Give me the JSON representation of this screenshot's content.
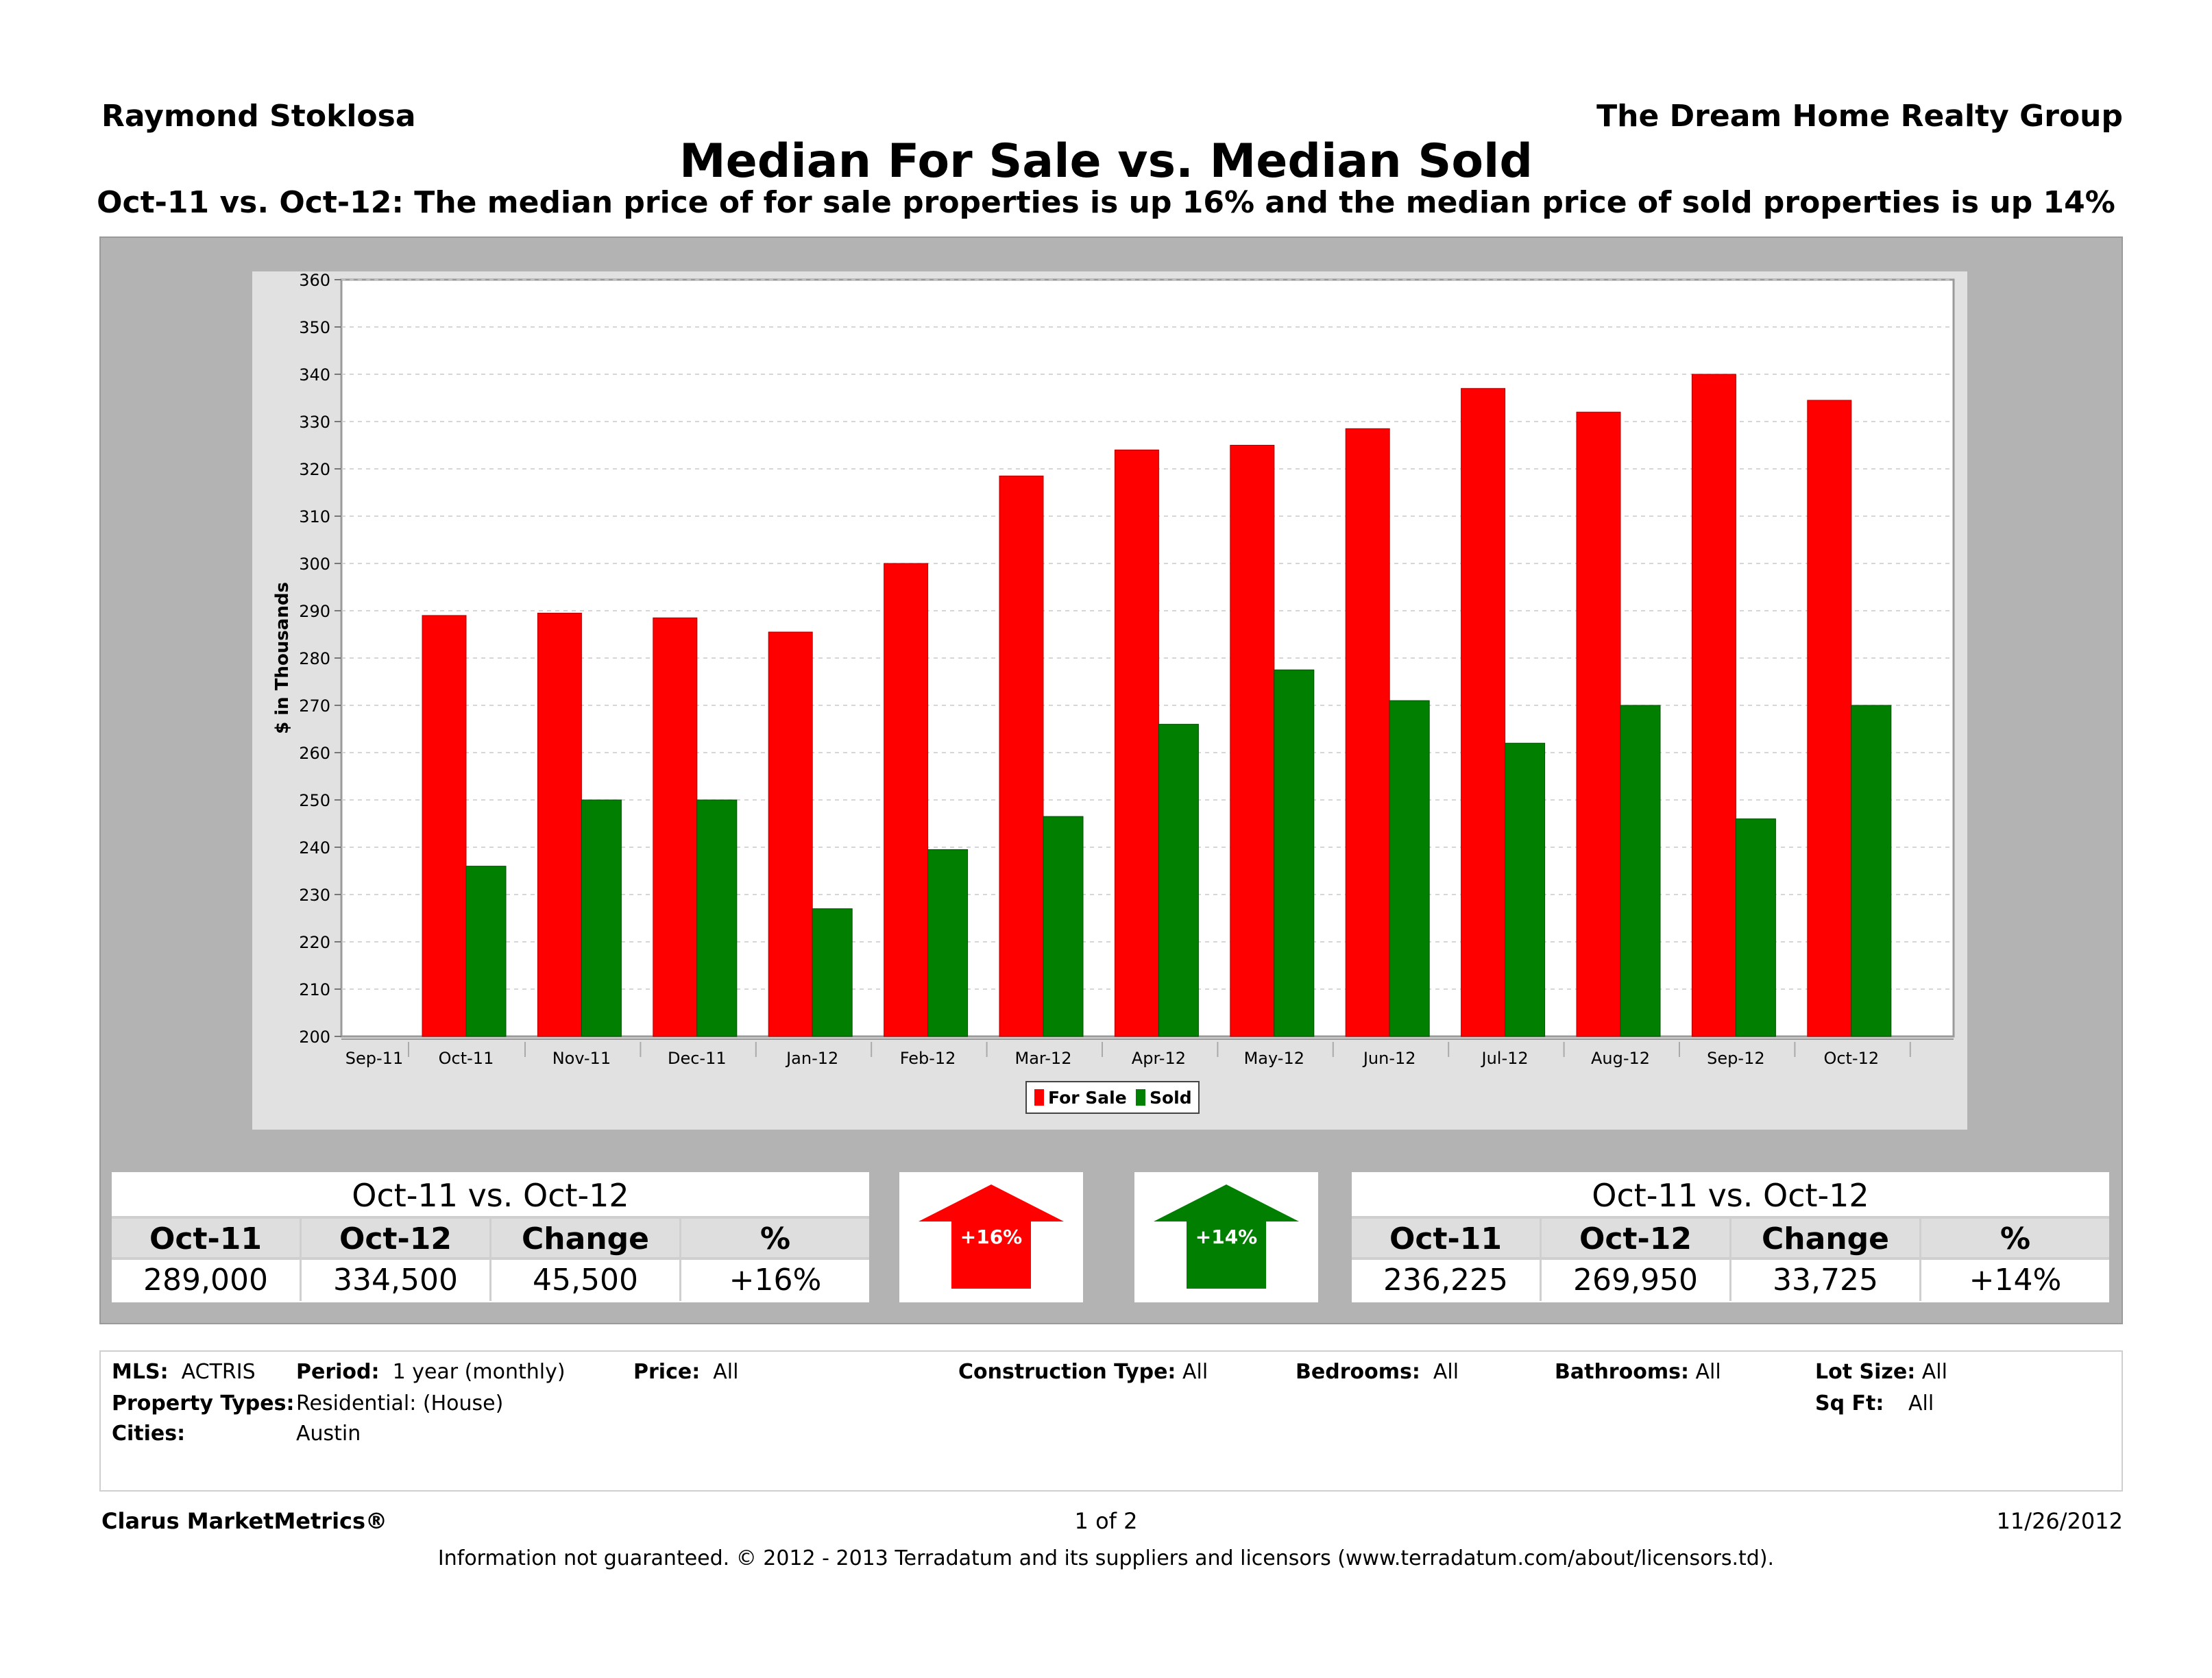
{
  "header": {
    "agent": "Raymond Stoklosa",
    "company": "The Dream Home Realty Group",
    "title": "Median For Sale vs. Median Sold",
    "subtitle": "Oct-11 vs. Oct-12:  The median price of for sale properties is up 16% and the median price of sold properties is up 14%"
  },
  "chart_data": {
    "type": "bar",
    "title": "",
    "xlabel": "",
    "ylabel": "$ in Thousands",
    "ylim": [
      200,
      360
    ],
    "yticks": [
      200,
      210,
      220,
      230,
      240,
      250,
      260,
      270,
      280,
      290,
      300,
      310,
      320,
      330,
      340,
      350,
      360
    ],
    "categories": [
      "Sep-11",
      "Oct-11",
      "Nov-11",
      "Dec-11",
      "Jan-12",
      "Feb-12",
      "Mar-12",
      "Apr-12",
      "May-12",
      "Jun-12",
      "Jul-12",
      "Aug-12",
      "Sep-12",
      "Oct-12"
    ],
    "series": [
      {
        "name": "For Sale",
        "color": "#ff0000",
        "values": [
          null,
          289,
          289.5,
          288.5,
          285.5,
          300,
          318.5,
          324,
          325,
          328.5,
          337,
          332,
          340,
          334.5
        ]
      },
      {
        "name": "Sold",
        "color": "#007f00",
        "values": [
          null,
          236,
          250,
          250,
          227,
          239.5,
          246.5,
          266,
          277.5,
          271,
          262,
          270,
          246,
          270
        ]
      }
    ],
    "legend": "bottom-center",
    "grid": true
  },
  "for_sale_stats": {
    "heading": "Oct-11 vs. Oct-12",
    "labels": [
      "Oct-11",
      "Oct-12",
      "Change",
      "%"
    ],
    "values": [
      "289,000",
      "334,500",
      "45,500",
      "+16%"
    ]
  },
  "sold_stats": {
    "heading": "Oct-11 vs. Oct-12",
    "labels": [
      "Oct-11",
      "Oct-12",
      "Change",
      "%"
    ],
    "values": [
      "236,225",
      "269,950",
      "33,725",
      "+14%"
    ]
  },
  "arrows": {
    "for_sale": {
      "label": "+16%",
      "color": "#ff0000"
    },
    "sold": {
      "label": "+14%",
      "color": "#007f00"
    }
  },
  "filters": {
    "mls_label": "MLS:",
    "mls_value": "ACTRIS",
    "period_label": "Period:",
    "period_value": "1 year (monthly)",
    "price_label": "Price:",
    "price_value": "All",
    "construction_label": "Construction Type:",
    "construction_value": "All",
    "bedrooms_label": "Bedrooms:",
    "bedrooms_value": "All",
    "bathrooms_label": "Bathrooms:",
    "bathrooms_value": "All",
    "lotsize_label": "Lot Size:",
    "lotsize_value": "All",
    "property_types_label": "Property Types:",
    "property_types_value": "Residential: (House)",
    "sqft_label": "Sq Ft:",
    "sqft_value": "All",
    "cities_label": "Cities:",
    "cities_value": "Austin"
  },
  "footer": {
    "brand": "Clarus MarketMetrics®",
    "page": "1 of 2",
    "date": "11/26/2012",
    "disclaimer": "Information not guaranteed.  © 2012 - 2013 Terradatum and its suppliers and licensors (www.terradatum.com/about/licensors.td)."
  }
}
